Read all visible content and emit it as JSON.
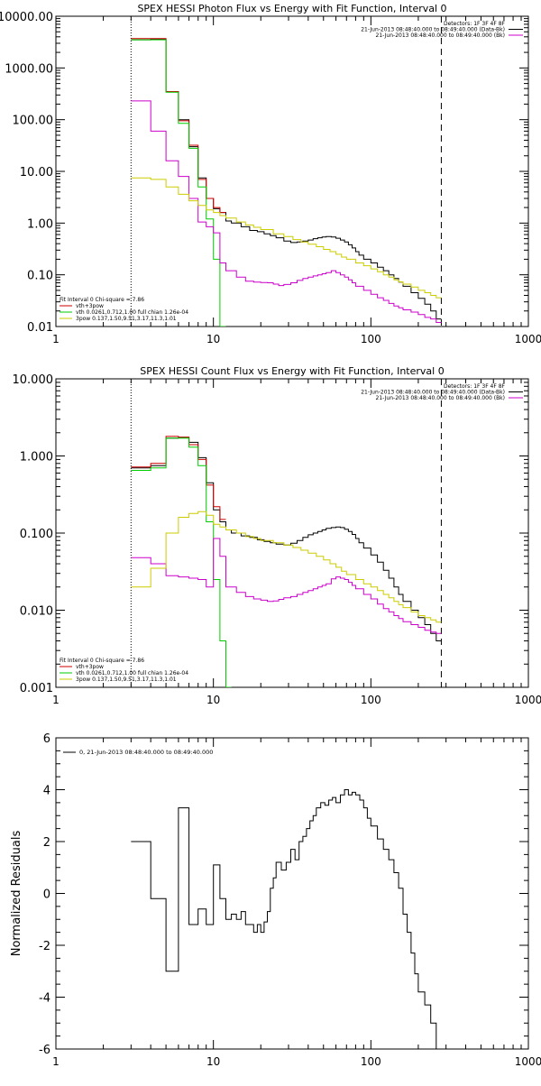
{
  "chart_data": [
    {
      "type": "line",
      "title": "SPEX HESSI Photon Flux vs Energy with Fit Function, Interval 0",
      "xlabel": "",
      "ylabel": "",
      "x_scale": "log",
      "y_scale": "log",
      "xlim": [
        1,
        1000
      ],
      "ylim": [
        0.01,
        10000
      ],
      "x_tick_labels": [
        "1",
        "10",
        "100",
        "1000"
      ],
      "y_tick_labels": [
        "0.01",
        "0.10",
        "1.00",
        "10.00",
        "100.00",
        "1000.00",
        "10000.00"
      ],
      "info_lines": [
        "Detectors: 1F 3F 4F 8F",
        "21-Jun-2013 08:48:40.000 to 08:49:40.000 (Data-Bk)",
        "21-Jun-2013 08:48:40.000 to 08:49:40.000 (Bk)"
      ],
      "fit_lines": [
        "Fit Interval 0   Chi-square = 7.86",
        "vth+3pow",
        "vth 0.0261,0.712,1.00  full chian 1.26e-04",
        "3pow 0.137,1.50,9.51,3.17,11.3,1.01"
      ],
      "vlines": [
        {
          "x": 3.0,
          "style": "dotted"
        },
        {
          "x": 280,
          "style": "dashed"
        }
      ],
      "series": [
        {
          "color": "#000000",
          "x": [
            3.0,
            4.0,
            5.0,
            6.0,
            7.0,
            8.0,
            9.0,
            10.0,
            11.0,
            12.0,
            13.0,
            15.0,
            17.0,
            19.0,
            21.0,
            23.0,
            25.0,
            28.0,
            31.0,
            34.0,
            37.0,
            40.0,
            43.0,
            46.0,
            49.0,
            52.0,
            56.0,
            60.0,
            64.0,
            68.0,
            72.0,
            76.0,
            80.0,
            84.0,
            90.0,
            100.0,
            110.0,
            120.0,
            130.0,
            140.0,
            150.0,
            160.0,
            180.0,
            200.0,
            220.0,
            240.0,
            260.0
          ],
          "y": [
            3500,
            3600,
            350,
            100,
            30,
            7.5,
            3.0,
            1.9,
            1.6,
            1.1,
            1.0,
            0.85,
            0.72,
            0.68,
            0.62,
            0.57,
            0.52,
            0.45,
            0.42,
            0.43,
            0.45,
            0.47,
            0.5,
            0.52,
            0.54,
            0.55,
            0.54,
            0.51,
            0.47,
            0.43,
            0.38,
            0.33,
            0.28,
            0.24,
            0.2,
            0.17,
            0.14,
            0.12,
            0.1,
            0.085,
            0.072,
            0.06,
            0.045,
            0.035,
            0.027,
            0.02,
            0.014
          ]
        },
        {
          "color": "#cc0000",
          "x": [
            3.0,
            4.0,
            5.0,
            6.0,
            7.0,
            8.0,
            9.0,
            10.0,
            11.0
          ],
          "y": [
            3700,
            3700,
            350,
            95,
            32,
            7.0,
            3.0,
            2.0,
            1.6
          ]
        },
        {
          "color": "#00cc00",
          "x": [
            3.0,
            4.0,
            5.0,
            6.0,
            7.0,
            8.0,
            9.0,
            10.0,
            11.0
          ],
          "y": [
            3500,
            3500,
            340,
            85,
            28,
            5.0,
            1.2,
            0.2,
            0.005
          ]
        },
        {
          "color": "#cc00cc",
          "x": [
            3.0,
            4.0,
            5.0,
            6.0,
            7.0,
            8.0,
            9.0,
            10.0,
            11.0,
            12.0,
            14.0,
            16.0,
            18.0,
            20.0,
            22.0,
            24.0,
            26.0,
            28.0,
            31.0,
            34.0,
            37.0,
            40.0,
            43.0,
            46.0,
            49.0,
            52.0,
            56.0,
            60.0,
            64.0,
            68.0,
            72.0,
            76.0,
            80.0,
            90.0,
            100.0,
            110.0,
            120.0,
            130.0,
            140.0,
            150.0,
            160.0,
            180.0,
            200.0,
            220.0,
            240.0,
            260.0
          ],
          "y": [
            230,
            60,
            16,
            8.0,
            3.0,
            1.05,
            0.85,
            0.65,
            0.17,
            0.12,
            0.09,
            0.075,
            0.072,
            0.071,
            0.07,
            0.066,
            0.062,
            0.065,
            0.07,
            0.078,
            0.085,
            0.09,
            0.095,
            0.1,
            0.105,
            0.11,
            0.12,
            0.11,
            0.1,
            0.09,
            0.08,
            0.07,
            0.06,
            0.05,
            0.042,
            0.036,
            0.032,
            0.028,
            0.025,
            0.023,
            0.021,
            0.019,
            0.017,
            0.015,
            0.014,
            0.012
          ]
        },
        {
          "color": "#cccc00",
          "x": [
            3.0,
            4.0,
            5.0,
            6.0,
            7.0,
            8.0,
            9.0,
            10.0,
            11.0,
            12.0,
            14.0,
            16.0,
            18.0,
            20.0,
            24.0,
            28.0,
            32.0,
            36.0,
            40.0,
            45.0,
            50.0,
            55.0,
            60.0,
            65.0,
            70.0,
            80.0,
            90.0,
            100.0,
            110.0,
            120.0,
            130.0,
            140.0,
            150.0,
            160.0,
            180.0,
            200.0,
            220.0,
            240.0,
            260.0
          ],
          "y": [
            7.5,
            7.0,
            5.0,
            3.6,
            2.7,
            2.2,
            1.8,
            1.6,
            1.4,
            1.25,
            1.05,
            0.92,
            0.83,
            0.75,
            0.62,
            0.55,
            0.48,
            0.43,
            0.39,
            0.35,
            0.31,
            0.28,
            0.25,
            0.22,
            0.2,
            0.17,
            0.15,
            0.13,
            0.115,
            0.1,
            0.09,
            0.08,
            0.073,
            0.066,
            0.058,
            0.05,
            0.045,
            0.04,
            0.036
          ]
        }
      ]
    },
    {
      "type": "line",
      "title": "SPEX HESSI Count Flux vs Energy with Fit Function, Interval 0",
      "xlabel": "",
      "ylabel": "",
      "x_scale": "log",
      "y_scale": "log",
      "xlim": [
        1,
        1000
      ],
      "ylim": [
        0.001,
        10
      ],
      "x_tick_labels": [
        "1",
        "10",
        "100",
        "1000"
      ],
      "y_tick_labels": [
        "0.001",
        "0.010",
        "0.100",
        "1.000",
        "10.000"
      ],
      "info_lines": [
        "Detectors: 1F 3F 4F 8F",
        "21-Jun-2013 08:48:40.000 to 08:49:40.000 (Data-Bk)",
        "21-Jun-2013 08:48:40.000 to 08:49:40.000 (Bk)"
      ],
      "fit_lines": [
        "Fit Interval 0   Chi-square = 7.86",
        "vth+3pow",
        "vth 0.0261,0.712,1.00  full chian 1.26e-04",
        "3pow 0.137,1.50,9.51,3.17,11.3,1.01"
      ],
      "vlines": [
        {
          "x": 3.0,
          "style": "dotted"
        },
        {
          "x": 280,
          "style": "dashed"
        }
      ],
      "series": [
        {
          "color": "#000000",
          "x": [
            3.0,
            4.0,
            5.0,
            6.0,
            7.0,
            8.0,
            9.0,
            10.0,
            11.0,
            12.0,
            13.0,
            15.0,
            17.0,
            19.0,
            21.0,
            23.0,
            25.0,
            28.0,
            31.0,
            34.0,
            37.0,
            40.0,
            43.0,
            46.0,
            49.0,
            52.0,
            56.0,
            60.0,
            64.0,
            68.0,
            72.0,
            76.0,
            80.0,
            84.0,
            90.0,
            100.0,
            110.0,
            120.0,
            130.0,
            140.0,
            150.0,
            160.0,
            180.0,
            200.0,
            220.0,
            240.0,
            260.0
          ],
          "y": [
            0.7,
            0.75,
            1.7,
            1.75,
            1.5,
            0.95,
            0.45,
            0.2,
            0.14,
            0.11,
            0.1,
            0.092,
            0.088,
            0.082,
            0.078,
            0.075,
            0.072,
            0.07,
            0.074,
            0.08,
            0.088,
            0.095,
            0.1,
            0.105,
            0.11,
            0.115,
            0.118,
            0.12,
            0.118,
            0.112,
            0.105,
            0.096,
            0.085,
            0.075,
            0.064,
            0.052,
            0.042,
            0.033,
            0.026,
            0.02,
            0.016,
            0.013,
            0.01,
            0.008,
            0.0065,
            0.005,
            0.004
          ]
        },
        {
          "color": "#cc0000",
          "x": [
            3.0,
            4.0,
            5.0,
            6.0,
            7.0,
            8.0,
            9.0,
            10.0,
            11.0
          ],
          "y": [
            0.72,
            0.8,
            1.8,
            1.75,
            1.4,
            0.9,
            0.42,
            0.22,
            0.15
          ]
        },
        {
          "color": "#00cc00",
          "x": [
            3.0,
            4.0,
            5.0,
            6.0,
            7.0,
            8.0,
            9.0,
            10.0,
            11.0,
            12.0
          ],
          "y": [
            0.65,
            0.7,
            1.7,
            1.7,
            1.3,
            0.75,
            0.14,
            0.025,
            0.004,
            0.0009
          ]
        },
        {
          "color": "#cc00cc",
          "x": [
            3.0,
            4.0,
            5.0,
            6.0,
            7.0,
            8.0,
            9.0,
            10.0,
            11.0,
            12.0,
            14.0,
            16.0,
            18.0,
            20.0,
            22.0,
            24.0,
            26.0,
            28.0,
            31.0,
            34.0,
            37.0,
            40.0,
            43.0,
            46.0,
            49.0,
            52.0,
            56.0,
            60.0,
            64.0,
            68.0,
            72.0,
            76.0,
            80.0,
            90.0,
            100.0,
            110.0,
            120.0,
            130.0,
            140.0,
            150.0,
            160.0,
            180.0,
            200.0,
            220.0,
            240.0,
            260.0
          ],
          "y": [
            0.048,
            0.04,
            0.028,
            0.027,
            0.026,
            0.025,
            0.02,
            0.085,
            0.05,
            0.02,
            0.017,
            0.015,
            0.014,
            0.0135,
            0.013,
            0.0132,
            0.0138,
            0.0145,
            0.015,
            0.016,
            0.017,
            0.018,
            0.019,
            0.02,
            0.021,
            0.022,
            0.0255,
            0.027,
            0.026,
            0.025,
            0.023,
            0.021,
            0.019,
            0.016,
            0.014,
            0.012,
            0.0105,
            0.0095,
            0.0085,
            0.0078,
            0.0071,
            0.0065,
            0.006,
            0.0055,
            0.0052,
            0.005
          ]
        },
        {
          "color": "#cccc00",
          "x": [
            3.0,
            4.0,
            5.0,
            6.0,
            7.0,
            8.0,
            9.0,
            10.0,
            11.0,
            12.0,
            14.0,
            16.0,
            18.0,
            20.0,
            24.0,
            28.0,
            32.0,
            36.0,
            40.0,
            45.0,
            50.0,
            55.0,
            60.0,
            65.0,
            70.0,
            80.0,
            90.0,
            100.0,
            110.0,
            120.0,
            130.0,
            140.0,
            150.0,
            160.0,
            180.0,
            200.0,
            220.0,
            240.0,
            260.0
          ],
          "y": [
            0.02,
            0.035,
            0.1,
            0.16,
            0.18,
            0.19,
            0.17,
            0.13,
            0.12,
            0.11,
            0.1,
            0.09,
            0.085,
            0.08,
            0.075,
            0.07,
            0.065,
            0.06,
            0.055,
            0.05,
            0.045,
            0.04,
            0.036,
            0.032,
            0.029,
            0.025,
            0.022,
            0.02,
            0.018,
            0.016,
            0.0145,
            0.013,
            0.0118,
            0.0108,
            0.0095,
            0.0085,
            0.008,
            0.0075,
            0.007
          ]
        }
      ]
    },
    {
      "type": "line",
      "title": "",
      "xlabel": "",
      "ylabel": "Normalized Residuals",
      "x_scale": "log",
      "y_scale": "linear",
      "xlim": [
        1,
        1000
      ],
      "ylim": [
        -6,
        6
      ],
      "x_tick_labels": [
        "1",
        "10",
        "100",
        "1000"
      ],
      "y_tick_labels": [
        "-6",
        "-4",
        "-2",
        "0",
        "2",
        "4",
        "6"
      ],
      "legend": "0, 21-Jun-2013 08:48:40.000 to 08:49:40.000",
      "series": [
        {
          "color": "#000000",
          "x": [
            3.0,
            4.0,
            5.0,
            6.0,
            7.0,
            8.0,
            9.0,
            10.0,
            11.0,
            12.0,
            13.0,
            14.0,
            15.0,
            16.0,
            17.0,
            18.0,
            19.0,
            20.0,
            21.0,
            22.0,
            23.0,
            24.0,
            25.0,
            27.0,
            29.0,
            31.0,
            33.0,
            35.0,
            37.0,
            39.0,
            41.0,
            43.0,
            45.0,
            48.0,
            51.0,
            54.0,
            57.0,
            60.0,
            64.0,
            68.0,
            72.0,
            76.0,
            80.0,
            85.0,
            90.0,
            95.0,
            100.0,
            110.0,
            120.0,
            130.0,
            140.0,
            150.0,
            160.0,
            170.0,
            180.0,
            190.0,
            200.0,
            220.0,
            240.0,
            260.0,
            280.0
          ],
          "y": [
            2.0,
            -0.2,
            -3.0,
            3.3,
            -1.2,
            -0.6,
            -1.2,
            1.1,
            -0.2,
            -1.0,
            -0.8,
            -1.0,
            -0.7,
            -1.2,
            -1.2,
            -1.5,
            -1.2,
            -1.5,
            -1.1,
            -0.7,
            0.2,
            0.6,
            1.2,
            0.9,
            1.2,
            1.7,
            1.3,
            2.0,
            2.2,
            2.5,
            2.8,
            3.0,
            3.3,
            3.5,
            3.4,
            3.6,
            3.7,
            3.5,
            3.8,
            4.0,
            3.8,
            3.9,
            3.8,
            3.6,
            3.3,
            2.9,
            2.6,
            2.1,
            1.7,
            1.3,
            0.8,
            0.2,
            -0.8,
            -1.5,
            -2.3,
            -3.1,
            -3.8,
            -4.3,
            -5.0,
            -6.0,
            -6.0
          ]
        }
      ]
    }
  ]
}
